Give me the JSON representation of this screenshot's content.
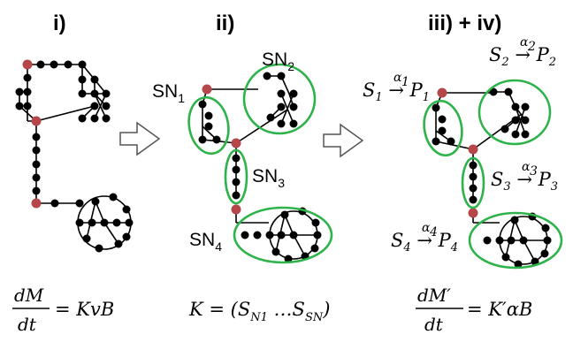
{
  "panels": {
    "panel1_title": "i)",
    "panel2_title": "ii)",
    "panel3_title": "iii) + iv)"
  },
  "subnetworks": {
    "sn1": {
      "main": "SN",
      "sub": "1"
    },
    "sn2": {
      "main": "SN",
      "sub": "2"
    },
    "sn3": {
      "main": "SN",
      "sub": "3"
    },
    "sn4": {
      "main": "SN",
      "sub": "4"
    }
  },
  "reactions": [
    {
      "s": "S",
      "s_sub": "1",
      "alpha": "α",
      "alpha_sub": "1",
      "p": "P",
      "p_sub": "1"
    },
    {
      "s": "S",
      "s_sub": "2",
      "alpha": "α",
      "alpha_sub": "2",
      "p": "P",
      "p_sub": "2"
    },
    {
      "s": "S",
      "s_sub": "3",
      "alpha": "α",
      "alpha_sub": "3",
      "p": "P",
      "p_sub": "3"
    },
    {
      "s": "S",
      "s_sub": "4",
      "alpha": "α",
      "alpha_sub": "4",
      "p": "P",
      "p_sub": "4"
    }
  ],
  "equations": {
    "eq1": {
      "num": "dM",
      "den": "dt",
      "rhs": "= KvB"
    },
    "eq2": {
      "lhs": "K = (S",
      "sub1": "N1",
      "mid": " …S",
      "sub2": "SN",
      "end": ")"
    },
    "eq3": {
      "num": "dM′",
      "den": "dt",
      "rhs": "= K′αB"
    }
  },
  "colors": {
    "ellipse": "#2db34a",
    "hub_node": "#b5474a",
    "node": "#000000"
  }
}
